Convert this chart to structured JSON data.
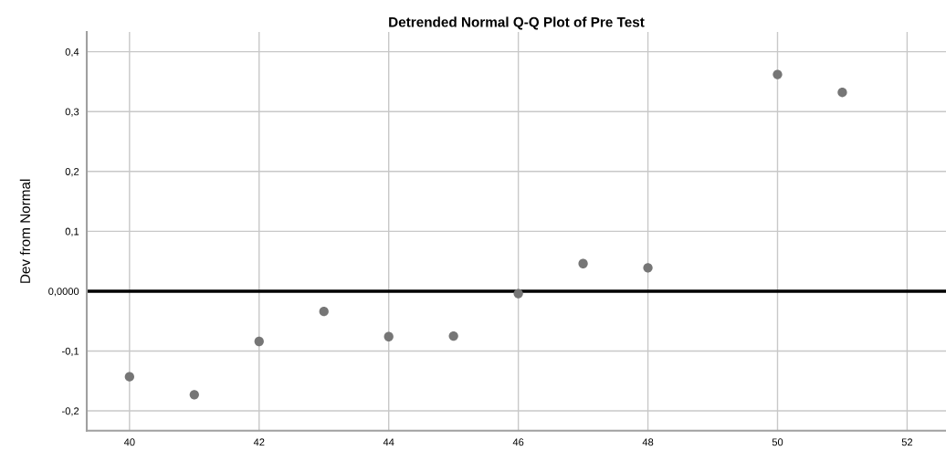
{
  "chart_data": {
    "type": "scatter",
    "title": "Detrended Normal Q-Q Plot of Pre Test",
    "ylabel": "Dev from Normal",
    "x": [
      40,
      41,
      42,
      43,
      44,
      45,
      46,
      47,
      48,
      50,
      51
    ],
    "series": [
      {
        "color": "#767676",
        "values": [
          -0.143,
          -0.173,
          -0.084,
          -0.034,
          -0.076,
          -0.075,
          -0.004,
          0.046,
          0.039,
          0.362,
          0.332
        ]
      }
    ],
    "marker": "circle",
    "grid": true,
    "xlim": [
      39.34,
      52.6
    ],
    "xticks": [
      40,
      42,
      44,
      46,
      48,
      50,
      52
    ],
    "ylim": [
      -0.233,
      0.433
    ],
    "yticks": [
      {
        "value": -0.2,
        "label": "-0,2"
      },
      {
        "value": -0.1,
        "label": "-0,1"
      },
      {
        "value": 0,
        "label": "0,0000"
      },
      {
        "value": 0.1,
        "label": "0,1"
      },
      {
        "value": 0.2,
        "label": "0,2"
      },
      {
        "value": 0.3,
        "label": "0,3"
      },
      {
        "value": 0.4,
        "label": "0,4"
      }
    ],
    "ref_lines": [
      {
        "axis": "y",
        "value": 0,
        "label": null,
        "color": "#000000",
        "line_style": "solid"
      }
    ]
  }
}
